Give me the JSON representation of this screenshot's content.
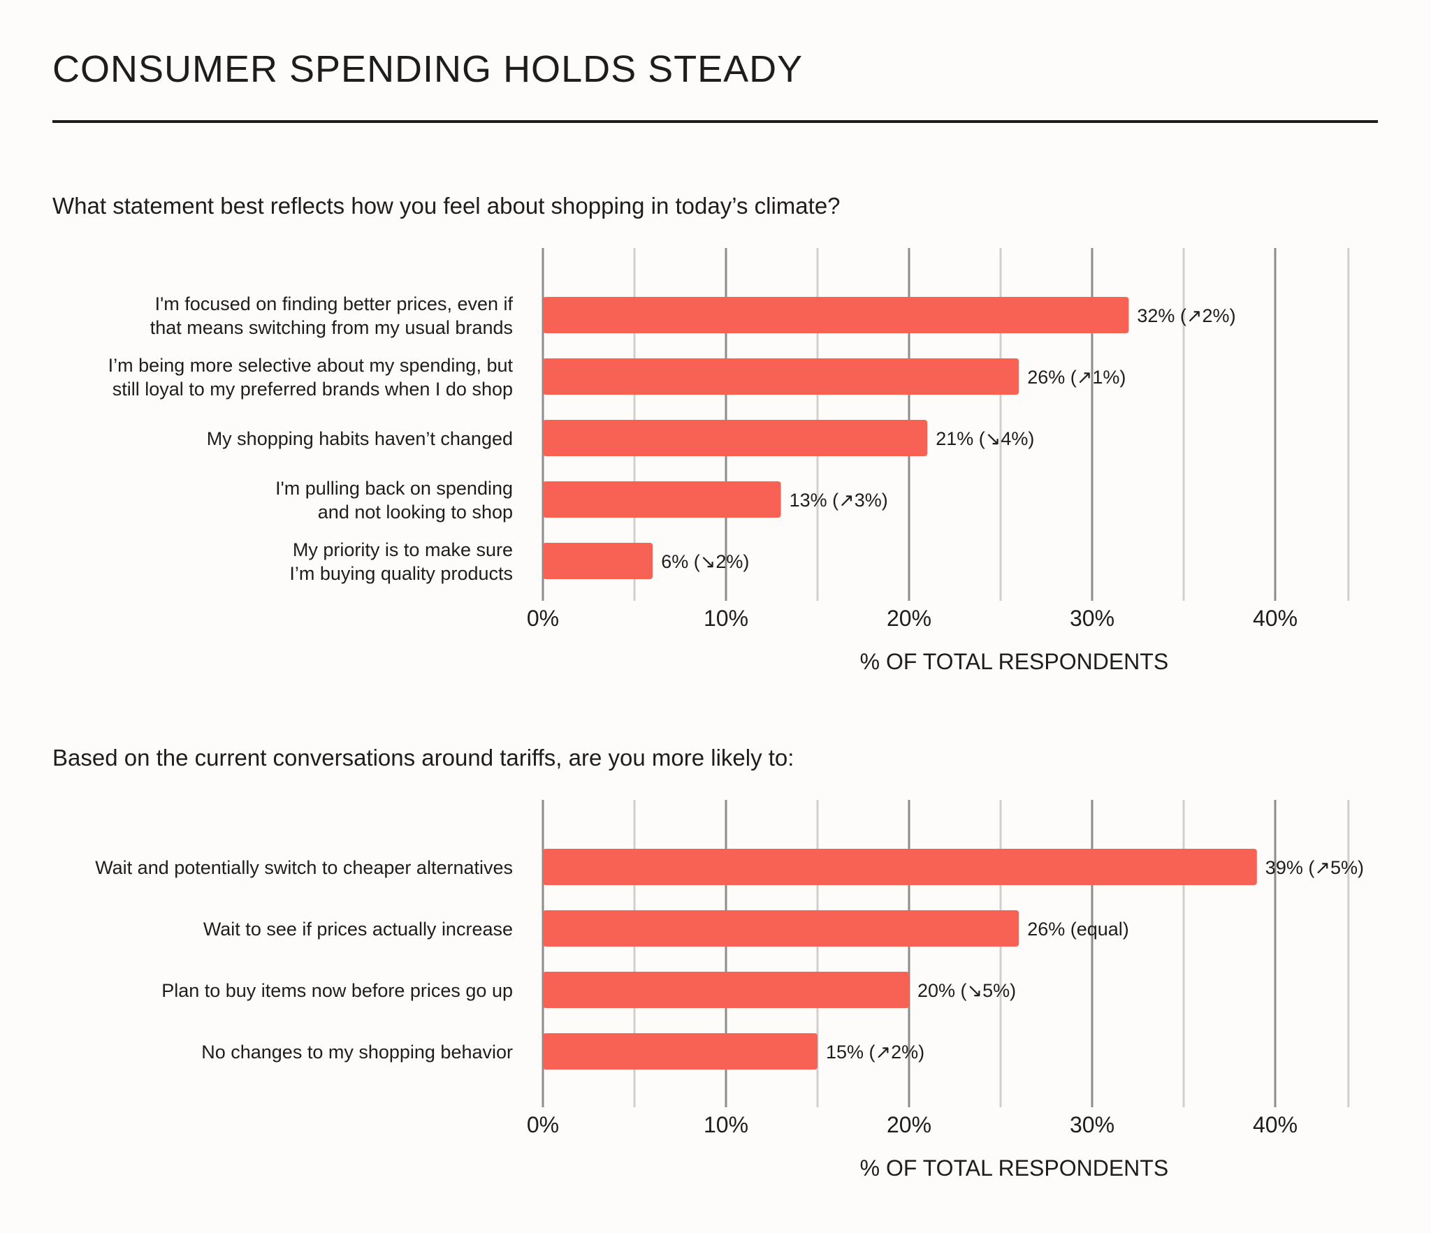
{
  "title": "CONSUMER SPENDING HOLDS STEADY",
  "colors": {
    "bar": "#f76254",
    "gridline_major": "#8c8c8c",
    "gridline_minor": "#cfcfcf",
    "text": "#1d1d1b",
    "background": "#fdfcfa"
  },
  "chart_data": [
    {
      "type": "bar",
      "orientation": "horizontal",
      "question": "What statement best reflects how you feel about shopping in today’s climate?",
      "categories": [
        [
          "I'm focused on finding better prices, even if",
          "that means switching from my usual brands"
        ],
        [
          "I’m being more selective about my spending, but",
          "still loyal to my preferred brands when I do shop"
        ],
        [
          "My shopping habits haven’t changed"
        ],
        [
          "I'm pulling back on spending",
          "and not looking to shop"
        ],
        [
          "My priority is to make sure",
          "I’m buying quality products"
        ]
      ],
      "values": [
        32,
        26,
        21,
        13,
        6
      ],
      "value_labels": [
        "32% (↗2%)",
        "26% (↗1%)",
        "21% (↘4%)",
        "13% (↗3%)",
        "6% (↘2%)"
      ],
      "xlim": [
        0,
        44
      ],
      "xticks": [
        0,
        10,
        20,
        30,
        40
      ],
      "xtick_labels": [
        "0%",
        "10%",
        "20%",
        "30%",
        "40%"
      ],
      "minor_gridlines": [
        5,
        15,
        25,
        35,
        44
      ],
      "xlabel": "% OF TOTAL RESPONDENTS"
    },
    {
      "type": "bar",
      "orientation": "horizontal",
      "question": "Based on the current conversations around tariffs, are you more likely to:",
      "categories": [
        [
          "Wait and potentially switch to cheaper alternatives"
        ],
        [
          "Wait to see if prices actually increase"
        ],
        [
          "Plan to buy items now before prices go up"
        ],
        [
          "No changes to my shopping behavior"
        ]
      ],
      "values": [
        39,
        26,
        20,
        15
      ],
      "value_labels": [
        "39% (↗5%)",
        "26% (equal)",
        "20% (↘5%)",
        "15% (↗2%)"
      ],
      "xlim": [
        0,
        44
      ],
      "xticks": [
        0,
        10,
        20,
        30,
        40
      ],
      "xtick_labels": [
        "0%",
        "10%",
        "20%",
        "30%",
        "40%"
      ],
      "minor_gridlines": [
        5,
        15,
        25,
        35,
        44
      ],
      "xlabel": "% OF TOTAL RESPONDENTS"
    }
  ]
}
